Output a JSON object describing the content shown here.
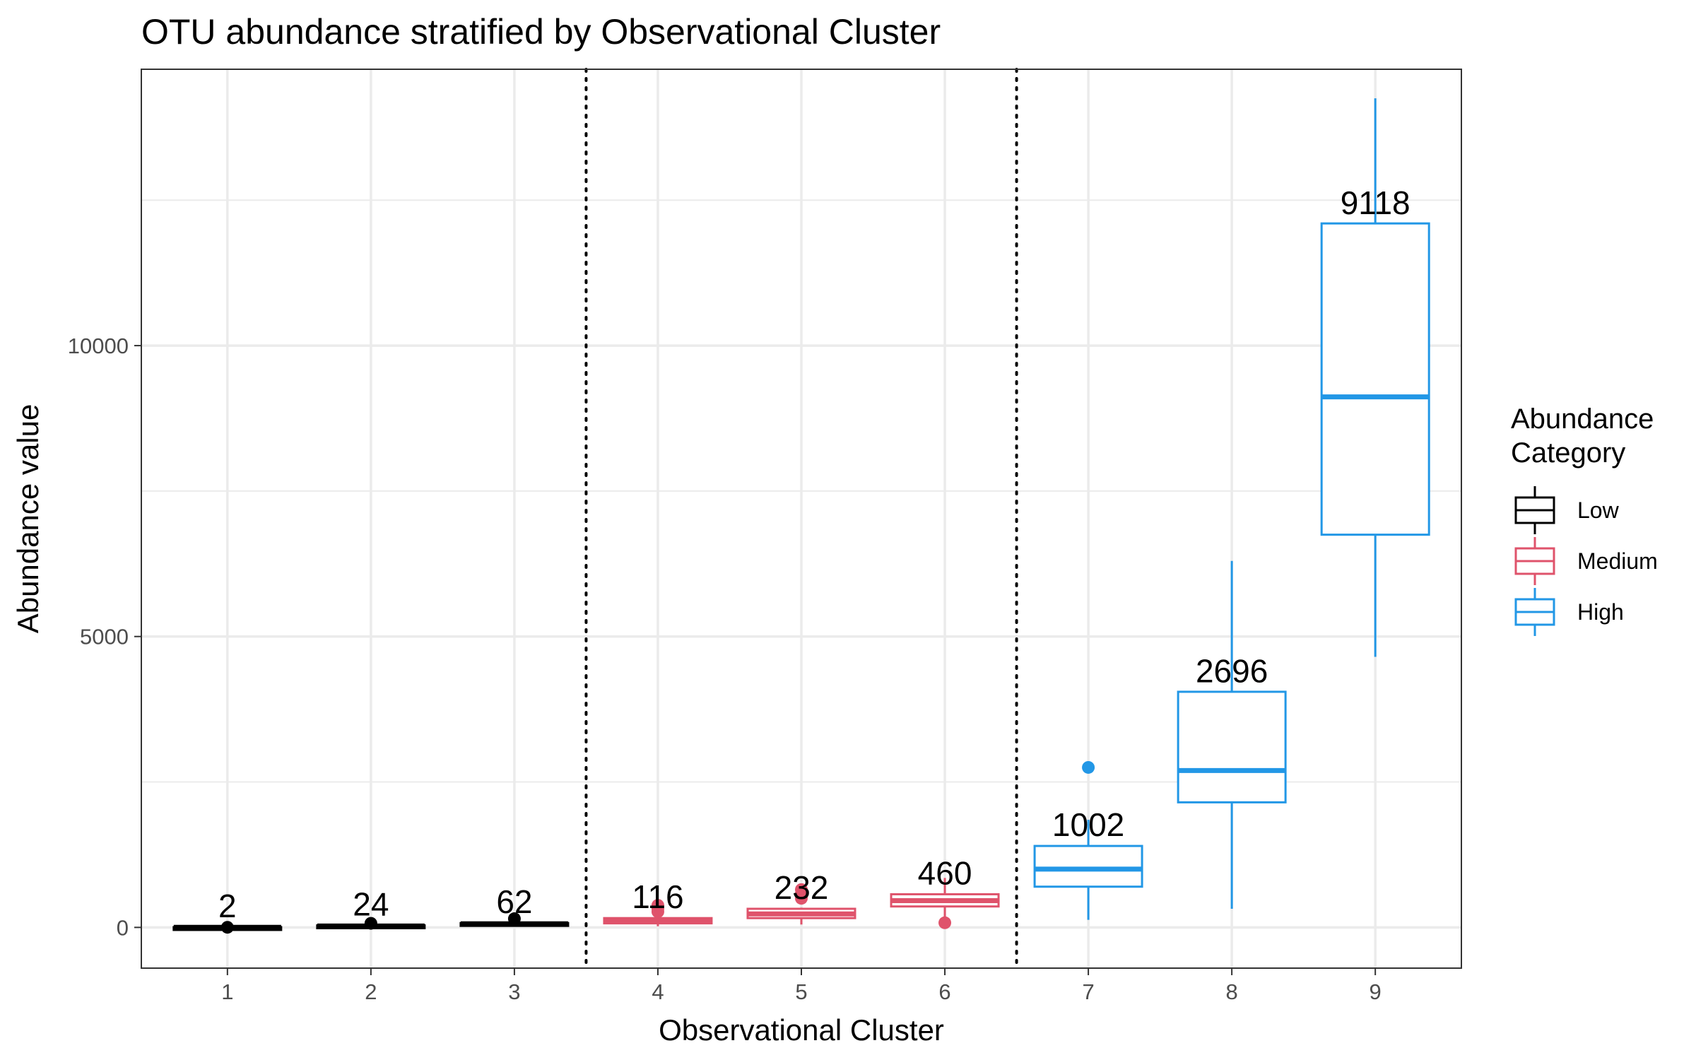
{
  "chart_data": {
    "type": "box",
    "title": "OTU abundance stratified by Observational Cluster",
    "xlabel": "Observational Cluster",
    "ylabel": "Abundance value",
    "ylim": [
      -700,
      14750
    ],
    "y_ticks": [
      0,
      5000,
      10000
    ],
    "y_minor_gridlines": [
      2500,
      7500,
      12500
    ],
    "categories": [
      "1",
      "2",
      "3",
      "4",
      "5",
      "6",
      "7",
      "8",
      "9"
    ],
    "group_dividers_between": [
      [
        3,
        4
      ],
      [
        6,
        7
      ]
    ],
    "grid": true,
    "legend": {
      "title": "Abundance\nCategory",
      "position": "right",
      "entries": [
        "Low",
        "Medium",
        "High"
      ]
    },
    "colors": {
      "Low": "#000000",
      "Medium": "#DF536B",
      "High": "#2297E6"
    },
    "boxes": [
      {
        "category": "1",
        "group": "Low",
        "median": 2,
        "q1": 0,
        "q3": 5,
        "whisker_low": 0,
        "whisker_high": 10,
        "outliers": [
          2
        ]
      },
      {
        "category": "2",
        "group": "Low",
        "median": 24,
        "q1": 15,
        "q3": 35,
        "whisker_low": 5,
        "whisker_high": 45,
        "outliers": [
          70
        ]
      },
      {
        "category": "3",
        "group": "Low",
        "median": 62,
        "q1": 50,
        "q3": 75,
        "whisker_low": 35,
        "whisker_high": 90,
        "outliers": [
          150
        ]
      },
      {
        "category": "4",
        "group": "Medium",
        "median": 116,
        "q1": 70,
        "q3": 160,
        "whisker_low": 20,
        "whisker_high": 200,
        "outliers": [
          270,
          320,
          380
        ]
      },
      {
        "category": "5",
        "group": "Medium",
        "median": 232,
        "q1": 160,
        "q3": 320,
        "whisker_low": 50,
        "whisker_high": 340,
        "outliers": [
          500,
          580,
          650
        ]
      },
      {
        "category": "6",
        "group": "Medium",
        "median": 460,
        "q1": 360,
        "q3": 570,
        "whisker_low": 150,
        "whisker_high": 850,
        "outliers": [
          80
        ]
      },
      {
        "category": "7",
        "group": "High",
        "median": 1002,
        "q1": 700,
        "q3": 1400,
        "whisker_low": 130,
        "whisker_high": 1850,
        "outliers": [
          2750
        ]
      },
      {
        "category": "8",
        "group": "High",
        "median": 2696,
        "q1": 2150,
        "q3": 4050,
        "whisker_low": 320,
        "whisker_high": 6300,
        "outliers": []
      },
      {
        "category": "9",
        "group": "High",
        "median": 9118,
        "q1": 6750,
        "q3": 12100,
        "whisker_low": 4650,
        "whisker_high": 14250,
        "outliers": []
      }
    ]
  }
}
